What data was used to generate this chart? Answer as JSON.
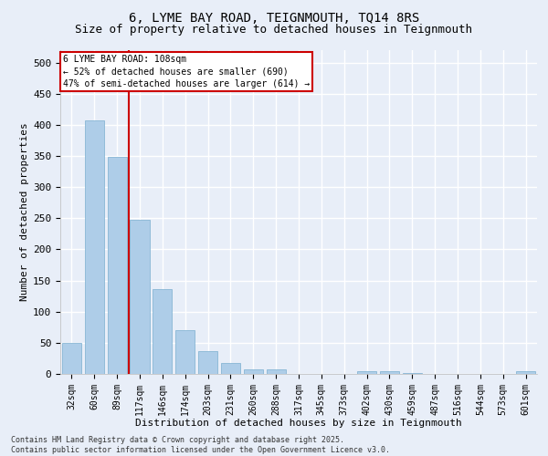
{
  "title": "6, LYME BAY ROAD, TEIGNMOUTH, TQ14 8RS",
  "subtitle": "Size of property relative to detached houses in Teignmouth",
  "xlabel": "Distribution of detached houses by size in Teignmouth",
  "ylabel": "Number of detached properties",
  "categories": [
    "32sqm",
    "60sqm",
    "89sqm",
    "117sqm",
    "146sqm",
    "174sqm",
    "203sqm",
    "231sqm",
    "260sqm",
    "288sqm",
    "317sqm",
    "345sqm",
    "373sqm",
    "402sqm",
    "430sqm",
    "459sqm",
    "487sqm",
    "516sqm",
    "544sqm",
    "573sqm",
    "601sqm"
  ],
  "values": [
    50,
    407,
    348,
    247,
    136,
    71,
    36,
    17,
    7,
    7,
    0,
    0,
    0,
    5,
    4,
    2,
    0,
    0,
    0,
    0,
    4
  ],
  "bar_color": "#aecde8",
  "bar_edge_color": "#7aaecf",
  "vline_color": "#cc0000",
  "annotation_text": "6 LYME BAY ROAD: 108sqm\n← 52% of detached houses are smaller (690)\n47% of semi-detached houses are larger (614) →",
  "annotation_box_color": "#ffffff",
  "annotation_box_edge_color": "#cc0000",
  "ylim": [
    0,
    520
  ],
  "yticks": [
    0,
    50,
    100,
    150,
    200,
    250,
    300,
    350,
    400,
    450,
    500
  ],
  "background_color": "#e8eef8",
  "grid_color": "#ffffff",
  "footnote": "Contains HM Land Registry data © Crown copyright and database right 2025.\nContains public sector information licensed under the Open Government Licence v3.0.",
  "title_fontsize": 10,
  "subtitle_fontsize": 9,
  "tick_fontsize": 7,
  "ylabel_fontsize": 8,
  "xlabel_fontsize": 8,
  "footnote_fontsize": 6
}
